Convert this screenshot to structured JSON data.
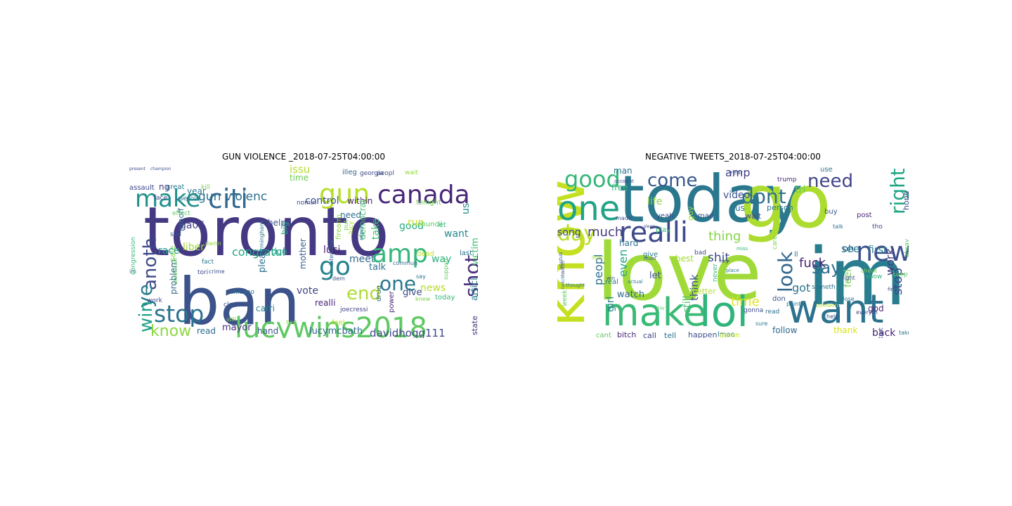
{
  "panels": [
    {
      "title": "GUN VIOLENCE _2018-07-25T04:00:00",
      "words": [
        {
          "text": "toronto",
          "color": "#443983"
        },
        {
          "text": "ban",
          "color": "#3b528b"
        },
        {
          "text": "lucywins2018",
          "color": "#5ec962"
        },
        {
          "text": "citi",
          "color": "#31688e"
        },
        {
          "text": "make",
          "color": "#21918c"
        },
        {
          "text": "gun",
          "color": "#b5de2b"
        },
        {
          "text": "canada",
          "color": "#482878"
        },
        {
          "text": "amp",
          "color": "#35b779"
        },
        {
          "text": "go",
          "color": "#26828e"
        },
        {
          "text": "stop",
          "color": "#2c728e"
        },
        {
          "text": "end",
          "color": "#addc30"
        },
        {
          "text": "one",
          "color": "#2a788e"
        },
        {
          "text": "shot",
          "color": "#472d7b"
        },
        {
          "text": "anoth",
          "color": "#3e4989"
        },
        {
          "text": "ye",
          "color": "#287c8e"
        },
        {
          "text": "win",
          "color": "#1fa187"
        },
        {
          "text": "know",
          "color": "#90d743"
        },
        {
          "text": "gun violenc",
          "color": "#2d708e"
        },
        {
          "text": "congratul",
          "color": "#22a884"
        },
        {
          "text": "davidhogg111",
          "color": "#3f4788"
        },
        {
          "text": "lucymcbath",
          "color": "#31688e"
        },
        {
          "text": "issu",
          "color": "#b5de2b"
        },
        {
          "text": "good",
          "color": "#27ad81"
        },
        {
          "text": "us",
          "color": "#228c8d"
        },
        {
          "text": "want",
          "color": "#23888e"
        },
        {
          "text": "victim",
          "color": "#40bd72"
        },
        {
          "text": "control",
          "color": "#3b528b"
        },
        {
          "text": "within",
          "color": "#482475"
        },
        {
          "text": "need",
          "color": "#2c728e"
        },
        {
          "text": "time",
          "color": "#6ece58"
        },
        {
          "text": "year",
          "color": "#2a788e"
        },
        {
          "text": "ga06",
          "color": "#433e85"
        },
        {
          "text": "help",
          "color": "#3a548c"
        },
        {
          "text": "don",
          "color": "#1f9e89"
        },
        {
          "text": "liber",
          "color": "#a2da37"
        },
        {
          "text": "mayor",
          "color": "#46327e"
        },
        {
          "text": "vote",
          "color": "#414487"
        },
        {
          "text": "realli",
          "color": "#482576"
        },
        {
          "text": "luci",
          "color": "#481a6c"
        },
        {
          "text": "meet",
          "color": "#31688e"
        },
        {
          "text": "talk",
          "color": "#2e6f8e"
        },
        {
          "text": "way",
          "color": "#29af7f"
        },
        {
          "text": "run",
          "color": "#c2df23"
        },
        {
          "text": "take",
          "color": "#3dbc74"
        },
        {
          "text": "news",
          "color": "#b8de29"
        },
        {
          "text": "give",
          "color": "#3e4989"
        },
        {
          "text": "articl",
          "color": "#277f8e"
        },
        {
          "text": "state",
          "color": "#46337f"
        },
        {
          "text": "race",
          "color": "#1f988b"
        },
        {
          "text": "problem",
          "color": "#31688e"
        },
        {
          "text": "sale",
          "color": "#7ad151"
        },
        {
          "text": "runoff",
          "color": "#2e6e8e"
        },
        {
          "text": "ng",
          "color": "#443983"
        },
        {
          "text": "mother",
          "color": "#355f8d"
        },
        {
          "text": "democrat",
          "color": "#4ac16d"
        },
        {
          "text": "pleas",
          "color": "#2d708e"
        },
        {
          "text": "big",
          "color": "#22a785"
        },
        {
          "text": "hand",
          "color": "#3b528b"
        },
        {
          "text": "read",
          "color": "#2f6c8e"
        },
        {
          "text": "carri",
          "color": "#26818e"
        },
        {
          "text": "firearm",
          "color": "#8ed645"
        },
        {
          "text": "drug",
          "color": "#31688e"
        },
        {
          "text": "power",
          "color": "#482878"
        },
        {
          "text": "dead",
          "color": "#c0df25"
        },
        {
          "text": "council",
          "color": "#5ec962"
        },
        {
          "text": "let",
          "color": "#35b779"
        },
        {
          "text": "last",
          "color": "#2c728e"
        },
        {
          "text": "tonight",
          "color": "#6ece58"
        },
        {
          "text": "assault",
          "color": "#3e4989"
        },
        {
          "text": "great",
          "color": "#2a788e"
        },
        {
          "text": "kill",
          "color": "#7ad151"
        },
        {
          "text": "illeg",
          "color": "#31688e"
        },
        {
          "text": "georgia",
          "color": "#3e4989"
        },
        {
          "text": "peopl",
          "color": "#3b528b"
        },
        {
          "text": "wait",
          "color": "#95d840"
        },
        {
          "text": "face",
          "color": "#414487"
        },
        {
          "text": "polic",
          "color": "#2a788e"
        },
        {
          "text": "use",
          "color": "#2c728e"
        },
        {
          "text": "nomin",
          "color": "#3e4989"
        },
        {
          "text": "put",
          "color": "#7ad151"
        },
        {
          "text": "effect",
          "color": "#5ec962"
        },
        {
          "text": "sad",
          "color": "#3b528b"
        },
        {
          "text": "fact",
          "color": "#2a788e"
        },
        {
          "text": "tori",
          "color": "#3e4989"
        },
        {
          "text": "chicago",
          "color": "#2c728e"
        },
        {
          "text": "clear",
          "color": "#3b528b"
        },
        {
          "text": "joecressi",
          "color": "#414487"
        },
        {
          "text": "still",
          "color": "#8ed645"
        },
        {
          "text": "bad",
          "color": "#7ad151"
        },
        {
          "text": "feel",
          "color": "#b5de2b"
        },
        {
          "text": "today",
          "color": "#35b779"
        },
        {
          "text": "say",
          "color": "#2c728e"
        },
        {
          "text": "dem",
          "color": "#3b528b"
        },
        {
          "text": "interview",
          "color": "#31688e"
        },
        {
          "text": "american",
          "color": "#5ec962"
        },
        {
          "text": "congression",
          "color": "#35b779"
        },
        {
          "text": "work",
          "color": "#3e4989"
        },
        {
          "text": "im",
          "color": "#2c728e"
        },
        {
          "text": "damn",
          "color": "#8ed645"
        },
        {
          "text": "crime",
          "color": "#3b528b"
        },
        {
          "text": "birmingham",
          "color": "#2a788e"
        },
        {
          "text": "support",
          "color": "#5ec962"
        },
        {
          "text": "report",
          "color": "#2c728e"
        },
        {
          "text": "knew",
          "color": "#7ad151"
        },
        {
          "text": "present",
          "color": "#3e4989"
        },
        {
          "text": "champion",
          "color": "#3b528b"
        },
        {
          "text": "lucy",
          "color": "#b5de2b"
        },
        {
          "text": "commun",
          "color": "#31688e"
        }
      ]
    },
    {
      "title": "NEGATIVE TWEETS_2018-07-25T04:00:00",
      "words": [
        {
          "text": "love",
          "color": "#a0da39"
        },
        {
          "text": "today",
          "color": "#2a788e"
        },
        {
          "text": "go",
          "color": "#addc30"
        },
        {
          "text": "im",
          "color": "#287d8e"
        },
        {
          "text": "make",
          "color": "#3aba76"
        },
        {
          "text": "lol",
          "color": "#2fb47c"
        },
        {
          "text": "want",
          "color": "#2c728e"
        },
        {
          "text": "know",
          "color": "#c5e021"
        },
        {
          "text": "one",
          "color": "#20a386"
        },
        {
          "text": "realli",
          "color": "#3e4a89"
        },
        {
          "text": "new",
          "color": "#3b518b"
        },
        {
          "text": "good",
          "color": "#35b779"
        },
        {
          "text": "come",
          "color": "#38588c"
        },
        {
          "text": "dont",
          "color": "#2d718e"
        },
        {
          "text": "need",
          "color": "#414487"
        },
        {
          "text": "right",
          "color": "#21a585"
        },
        {
          "text": "day",
          "color": "#b8de29"
        },
        {
          "text": "look",
          "color": "#31678e"
        },
        {
          "text": "say",
          "color": "#2e6e8e"
        },
        {
          "text": "much",
          "color": "#443a83"
        },
        {
          "text": "thing",
          "color": "#86d549"
        },
        {
          "text": "shit",
          "color": "#3d4d8a"
        },
        {
          "text": "fuck",
          "color": "#482475"
        },
        {
          "text": "see",
          "color": "#29798e"
        },
        {
          "text": "first",
          "color": "#2a788e"
        },
        {
          "text": "feel",
          "color": "#7ad151"
        },
        {
          "text": "got",
          "color": "#2a768e"
        },
        {
          "text": "stop",
          "color": "#3e4989"
        },
        {
          "text": "work",
          "color": "#443983"
        },
        {
          "text": "time",
          "color": "#e5e419"
        },
        {
          "text": "think",
          "color": "#3b528b"
        },
        {
          "text": "still",
          "color": "#4ac16d"
        },
        {
          "text": "watch",
          "color": "#31688e"
        },
        {
          "text": "peopl",
          "color": "#2c728e"
        },
        {
          "text": "even",
          "color": "#22a884"
        },
        {
          "text": "girl",
          "color": "#27808e"
        },
        {
          "text": "song",
          "color": "#3e4a89"
        },
        {
          "text": "amp",
          "color": "#433e85"
        },
        {
          "text": "video",
          "color": "#3b528b"
        },
        {
          "text": "tri",
          "color": "#5ec962"
        },
        {
          "text": "use",
          "color": "#2a788e"
        },
        {
          "text": "man",
          "color": "#2c728e"
        },
        {
          "text": "life",
          "color": "#8ed645"
        },
        {
          "text": "free",
          "color": "#35b779"
        },
        {
          "text": "hope",
          "color": "#3e4989"
        },
        {
          "text": "oh",
          "color": "#2f6b8e"
        },
        {
          "text": "back",
          "color": "#481f70"
        },
        {
          "text": "thank",
          "color": "#dae319"
        },
        {
          "text": "follow",
          "color": "#31688e"
        },
        {
          "text": "god",
          "color": "#482878"
        },
        {
          "text": "lmao",
          "color": "#2a788e"
        },
        {
          "text": "damn",
          "color": "#c2df23"
        },
        {
          "text": "happen",
          "color": "#3b528b"
        },
        {
          "text": "tell",
          "color": "#2c728e"
        },
        {
          "text": "call",
          "color": "#3e4989"
        },
        {
          "text": "bitch",
          "color": "#482475"
        },
        {
          "text": "cant",
          "color": "#5ec962"
        },
        {
          "text": "let",
          "color": "#3b528b"
        },
        {
          "text": "best",
          "color": "#a2da37"
        },
        {
          "text": "better",
          "color": "#b5de2b"
        },
        {
          "text": "give",
          "color": "#2a788e"
        },
        {
          "text": "hard",
          "color": "#2c728e"
        },
        {
          "text": "play",
          "color": "#35b779"
        },
        {
          "text": "yeah",
          "color": "#3e4989"
        },
        {
          "text": "mad",
          "color": "#3b528b"
        },
        {
          "text": "guy",
          "color": "#a2da37"
        },
        {
          "text": "us",
          "color": "#2c728e"
        },
        {
          "text": "wait",
          "color": "#3e4989"
        },
        {
          "text": "post",
          "color": "#482878"
        },
        {
          "text": "tho",
          "color": "#3e4989"
        },
        {
          "text": "buy",
          "color": "#3b528b"
        },
        {
          "text": "person",
          "color": "#2a788e"
        },
        {
          "text": "care",
          "color": "#7ad151"
        },
        {
          "text": "ll",
          "color": "#2c728e"
        },
        {
          "text": "keep",
          "color": "#5ec962"
        },
        {
          "text": "don",
          "color": "#3b528b"
        },
        {
          "text": "never",
          "color": "#35b779"
        },
        {
          "text": "real",
          "color": "#2a788e"
        },
        {
          "text": "bad",
          "color": "#3e4989"
        },
        {
          "text": "week",
          "color": "#5ec962"
        },
        {
          "text": "made",
          "color": "#3b528b"
        },
        {
          "text": "read",
          "color": "#2c728e"
        },
        {
          "text": "gonna",
          "color": "#3e4989"
        },
        {
          "text": "sure",
          "color": "#2a788e"
        },
        {
          "text": "year",
          "color": "#3b528b"
        },
        {
          "text": "trump",
          "color": "#482878"
        },
        {
          "text": "account",
          "color": "#3e4989"
        },
        {
          "text": "someth",
          "color": "#2c728e"
        },
        {
          "text": "alway",
          "color": "#5ec962"
        },
        {
          "text": "start",
          "color": "#3b528b"
        },
        {
          "text": "take",
          "color": "#2c728e"
        },
        {
          "text": "show",
          "color": "#35b779"
        },
        {
          "text": "twitter",
          "color": "#3e4989"
        },
        {
          "text": "youtub",
          "color": "#31688e"
        },
        {
          "text": "twitch",
          "color": "#2a788e"
        },
        {
          "text": "litter",
          "color": "#a2da37"
        },
        {
          "text": "mani",
          "color": "#3b528b"
        },
        {
          "text": "hey",
          "color": "#3e4989"
        },
        {
          "text": "point",
          "color": "#2c728e"
        },
        {
          "text": "check",
          "color": "#7ad151"
        },
        {
          "text": "light",
          "color": "#3b528b"
        },
        {
          "text": "close",
          "color": "#2a788e"
        },
        {
          "text": "someon",
          "color": "#b5de2b"
        },
        {
          "text": "everyth",
          "color": "#3e4989"
        },
        {
          "text": "talk",
          "color": "#2c728e"
        },
        {
          "text": "help",
          "color": "#3b528b"
        },
        {
          "text": "actual",
          "color": "#2a788e"
        },
        {
          "text": "stay",
          "color": "#5ec962"
        },
        {
          "text": "sleep",
          "color": "#3e4989"
        },
        {
          "text": "thought",
          "color": "#2c728e"
        },
        {
          "text": "win",
          "color": "#3b528b"
        },
        {
          "text": "place",
          "color": "#2a788e"
        },
        {
          "text": "miss",
          "color": "#35b779"
        },
        {
          "text": "find",
          "color": "#3e4989"
        }
      ]
    }
  ]
}
